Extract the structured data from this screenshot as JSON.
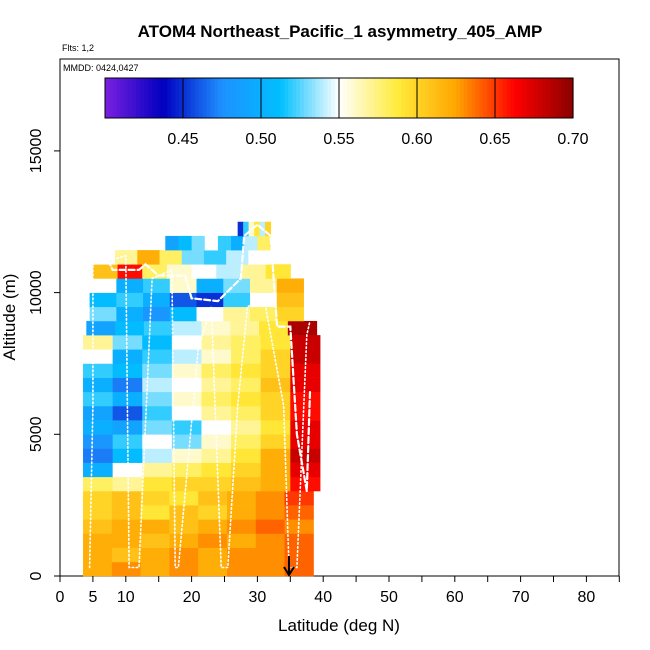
{
  "chart_data": {
    "type": "heatmap",
    "title": "ATOM4 Northeast_Pacific_1 asymmetry_405_AMP",
    "annotations": {
      "flights": "Flts: 1,2",
      "dates": "MMDD: 0424,0427"
    },
    "xlabel": "Latitude (deg N)",
    "ylabel": "Altitude (m)",
    "xlim": [
      0,
      85
    ],
    "ylim": [
      0,
      17500
    ],
    "x_ticks": [
      0,
      5,
      10,
      20,
      30,
      40,
      50,
      60,
      70,
      80
    ],
    "x_tick_labels": [
      "0",
      "5",
      "10",
      "20",
      "30",
      "40",
      "50",
      "60",
      "70",
      "80"
    ],
    "x_minor_ticks": [
      15,
      25,
      35,
      45,
      55,
      65,
      75,
      85
    ],
    "y_ticks": [
      0,
      5000,
      10000,
      15000
    ],
    "y_tick_labels": [
      "0",
      "5000",
      "10000",
      "15000"
    ],
    "colorbar": {
      "range": [
        0.4,
        0.7
      ],
      "ticks": [
        0.45,
        0.5,
        0.55,
        0.6,
        0.65,
        0.7
      ],
      "tick_labels": [
        "0.45",
        "0.50",
        "0.55",
        "0.60",
        "0.65",
        "0.70"
      ],
      "colors": [
        "#7b1fe0",
        "#0000c0",
        "#1e90ff",
        "#00bfff",
        "#ffffff",
        "#ffeb3b",
        "#ffa500",
        "#ff0000",
        "#8b0000"
      ]
    },
    "cell_layers": [
      {
        "alt_from": 0,
        "alt_to": 500,
        "lat_from": 3.5,
        "lat_to": 38.5,
        "values": [
          0.62,
          0.63,
          0.62,
          0.63,
          0.62,
          0.63,
          0.63,
          0.64
        ]
      },
      {
        "alt_from": 500,
        "alt_to": 1000,
        "lat_from": 3.5,
        "lat_to": 38.5,
        "values": [
          0.62,
          0.61,
          0.62,
          0.63,
          0.62,
          0.63,
          0.63,
          0.64
        ]
      },
      {
        "alt_from": 1000,
        "alt_to": 1500,
        "lat_from": 3.5,
        "lat_to": 38.5,
        "values": [
          0.62,
          0.62,
          0.61,
          0.62,
          0.63,
          0.62,
          0.63,
          0.64
        ]
      },
      {
        "alt_from": 1500,
        "alt_to": 2000,
        "lat_from": 3.5,
        "lat_to": 38.5,
        "values": [
          0.61,
          0.62,
          0.62,
          0.61,
          0.62,
          0.63,
          0.64,
          0.63
        ]
      },
      {
        "alt_from": 2000,
        "alt_to": 2500,
        "lat_from": 3.5,
        "lat_to": 38.5,
        "values": [
          0.6,
          0.61,
          0.59,
          0.61,
          0.6,
          0.62,
          0.63,
          0.64
        ]
      },
      {
        "alt_from": 2500,
        "alt_to": 3000,
        "lat_from": 3.5,
        "lat_to": 38.5,
        "values": [
          0.6,
          0.61,
          0.6,
          0.59,
          0.61,
          0.62,
          0.63,
          0.65
        ]
      },
      {
        "alt_from": 3000,
        "alt_to": 3500,
        "lat_from": 3.5,
        "lat_to": 39.5,
        "values": [
          0.58,
          0.57,
          0.59,
          0.6,
          0.6,
          0.61,
          0.62,
          0.66
        ]
      },
      {
        "alt_from": 3500,
        "alt_to": 4000,
        "lat_from": 3.5,
        "lat_to": 39.5,
        "values": [
          0.5,
          0.55,
          0.57,
          0.58,
          0.59,
          0.6,
          0.62,
          0.67
        ]
      },
      {
        "alt_from": 4000,
        "alt_to": 4500,
        "lat_from": 3.5,
        "lat_to": 39.5,
        "values": [
          0.47,
          0.51,
          0.54,
          0.56,
          0.57,
          0.59,
          0.62,
          0.68
        ]
      },
      {
        "alt_from": 4500,
        "alt_to": 5000,
        "lat_from": 3.5,
        "lat_to": 39.5,
        "values": [
          0.48,
          0.52,
          0.55,
          0.53,
          0.56,
          0.58,
          0.6,
          0.67
        ]
      },
      {
        "alt_from": 5000,
        "alt_to": 5500,
        "lat_from": 3.5,
        "lat_to": 39.5,
        "values": [
          0.5,
          0.49,
          0.53,
          0.52,
          0.55,
          0.57,
          0.59,
          0.67
        ]
      },
      {
        "alt_from": 5500,
        "alt_to": 6000,
        "lat_from": 3.5,
        "lat_to": 39.5,
        "values": [
          0.49,
          0.46,
          0.52,
          0.55,
          0.57,
          0.58,
          0.6,
          0.66
        ]
      },
      {
        "alt_from": 6000,
        "alt_to": 6500,
        "lat_from": 3.5,
        "lat_to": 39.5,
        "values": [
          0.52,
          0.5,
          0.53,
          0.56,
          0.58,
          0.59,
          0.6,
          0.66
        ]
      },
      {
        "alt_from": 6500,
        "alt_to": 7000,
        "lat_from": 3.5,
        "lat_to": 39.5,
        "values": [
          0.5,
          0.47,
          0.54,
          0.55,
          0.57,
          0.58,
          0.61,
          0.67
        ]
      },
      {
        "alt_from": 7000,
        "alt_to": 7500,
        "lat_from": 3.5,
        "lat_to": 39.5,
        "values": [
          0.52,
          0.51,
          0.53,
          0.56,
          0.58,
          0.59,
          0.6,
          0.67
        ]
      },
      {
        "alt_from": 7500,
        "alt_to": 8000,
        "lat_from": 3.5,
        "lat_to": 39.5,
        "values": [
          0.55,
          0.5,
          0.52,
          0.54,
          0.56,
          0.58,
          0.6,
          0.68
        ]
      },
      {
        "alt_from": 8000,
        "alt_to": 8500,
        "lat_from": 3.5,
        "lat_to": 39.5,
        "values": [
          0.57,
          0.53,
          0.51,
          0.55,
          0.57,
          0.58,
          0.59,
          0.68
        ]
      },
      {
        "alt_from": 8500,
        "alt_to": 9000,
        "lat_from": 4,
        "lat_to": 39,
        "values": [
          0.49,
          0.51,
          0.52,
          0.54,
          0.56,
          0.57,
          0.59,
          0.69
        ]
      },
      {
        "alt_from": 9000,
        "alt_to": 9500,
        "lat_from": 4.5,
        "lat_to": 37,
        "values": [
          0.53,
          0.5,
          0.48,
          0.51,
          0.55,
          0.57,
          0.58,
          0.6
        ]
      },
      {
        "alt_from": 9500,
        "alt_to": 10000,
        "lat_from": 4.5,
        "lat_to": 37,
        "values": [
          0.51,
          0.52,
          0.5,
          0.46,
          0.45,
          0.52,
          0.55,
          0.61
        ]
      },
      {
        "alt_from": 10000,
        "alt_to": 10500,
        "lat_from": 4.5,
        "lat_to": 37,
        "values": [
          0.55,
          0.5,
          0.52,
          0.56,
          0.5,
          0.53,
          0.57,
          0.62
        ]
      },
      {
        "alt_from": 10500,
        "alt_to": 11000,
        "lat_from": 5,
        "lat_to": 35,
        "values": [
          0.61,
          0.66,
          0.58,
          0.56,
          0.55,
          0.54,
          0.57,
          0.59
        ]
      },
      {
        "alt_from": 11000,
        "alt_to": 11500,
        "lat_from": 5,
        "lat_to": 32,
        "values": [
          0.55,
          0.57,
          0.62,
          0.58,
          0.53,
          0.52,
          0.54,
          0.55
        ]
      },
      {
        "alt_from": 11500,
        "alt_to": 12000,
        "lat_from": 16,
        "lat_to": 32,
        "values": [
          0.49,
          0.51,
          0.53,
          0.55,
          0.52,
          0.5,
          0.54,
          0.58
        ]
      },
      {
        "alt_from": 12000,
        "alt_to": 12500,
        "lat_from": 27,
        "lat_to": 32,
        "values": [
          0.45,
          0.52,
          0.56,
          0.59,
          0.54,
          0.6
        ]
      }
    ],
    "flight_tracks": [
      [
        [
          4.5,
          300
        ],
        [
          5,
          6000
        ],
        [
          5,
          11000
        ],
        [
          10,
          11300
        ],
        [
          10.5,
          300
        ],
        [
          12,
          300
        ],
        [
          14,
          10500
        ],
        [
          17,
          10800
        ],
        [
          17.5,
          300
        ],
        [
          18,
          300
        ],
        [
          21,
          8000
        ],
        [
          23,
          9500
        ],
        [
          24.5,
          300
        ],
        [
          25.5,
          300
        ],
        [
          27,
          6000
        ],
        [
          28.5,
          9500
        ],
        [
          31,
          9800
        ],
        [
          34,
          6000
        ],
        [
          34.8,
          300
        ],
        [
          36,
          300
        ],
        [
          37.5,
          8500
        ],
        [
          38,
          9000
        ]
      ],
      [
        [
          5,
          11200
        ],
        [
          7,
          11300
        ],
        [
          8,
          10800
        ],
        [
          12,
          10800
        ],
        [
          13,
          11000
        ],
        [
          15,
          10600
        ],
        [
          19,
          10600
        ],
        [
          20,
          9800
        ],
        [
          24,
          9700
        ],
        [
          27.5,
          10500
        ],
        [
          28,
          12000
        ],
        [
          30,
          12400
        ],
        [
          32,
          12000
        ],
        [
          33,
          8800
        ],
        [
          35,
          8800
        ],
        [
          36,
          5000
        ],
        [
          37.5,
          3000
        ],
        [
          38,
          6500
        ]
      ]
    ],
    "marker": {
      "type": "arrow",
      "lat": 34.8
    }
  }
}
